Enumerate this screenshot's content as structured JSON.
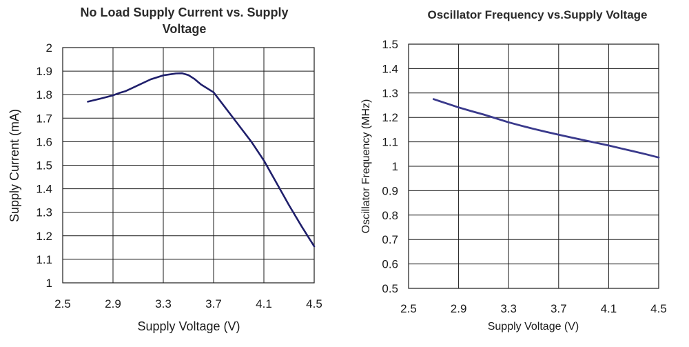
{
  "chart_data": [
    {
      "type": "line",
      "title": "No Load Supply Current vs. Supply Voltage",
      "xlabel": "Supply Voltage (V)",
      "ylabel": "Supply Current (mA)",
      "xlim": [
        2.5,
        4.5
      ],
      "ylim": [
        1,
        2
      ],
      "xticks": [
        2.5,
        2.9,
        3.3,
        3.7,
        4.1,
        4.5
      ],
      "xtick_labels": [
        "2.5",
        "2.9",
        "3.3",
        "3.7",
        "4.1",
        "4.5"
      ],
      "yticks": [
        1,
        1.1,
        1.2,
        1.3,
        1.4,
        1.5,
        1.6,
        1.7,
        1.8,
        1.9,
        2
      ],
      "ytick_labels": [
        "1",
        "1.1",
        "1.2",
        "1.3",
        "1.4",
        "1.5",
        "1.6",
        "1.7",
        "1.8",
        "1.9",
        "2"
      ],
      "grid": true,
      "color": "#1f1f6b",
      "series": [
        {
          "name": "Supply Current",
          "x": [
            2.7,
            2.8,
            2.9,
            2.95,
            3.0,
            3.1,
            3.2,
            3.3,
            3.4,
            3.45,
            3.5,
            3.55,
            3.6,
            3.7,
            3.8,
            3.9,
            4.0,
            4.1,
            4.2,
            4.3,
            4.4,
            4.5
          ],
          "y": [
            1.77,
            1.783,
            1.797,
            1.807,
            1.815,
            1.84,
            1.865,
            1.882,
            1.89,
            1.891,
            1.883,
            1.866,
            1.843,
            1.81,
            1.74,
            1.67,
            1.6,
            1.52,
            1.425,
            1.33,
            1.24,
            1.155
          ]
        }
      ]
    },
    {
      "type": "line",
      "title": "Oscillator Frequency vs.Supply Voltage",
      "xlabel": "Supply Voltage (V)",
      "ylabel": "Oscillator Frequency (MHz)",
      "xlim": [
        2.5,
        4.5
      ],
      "ylim": [
        0.5,
        1.5
      ],
      "xticks": [
        2.5,
        2.9,
        3.3,
        3.7,
        4.1,
        4.5
      ],
      "xtick_labels": [
        "2.5",
        "2.9",
        "3.3",
        "3.7",
        "4.1",
        "4.5"
      ],
      "yticks": [
        0.5,
        0.6,
        0.7,
        0.8,
        0.9,
        1,
        1.1,
        1.2,
        1.3,
        1.4,
        1.5
      ],
      "ytick_labels": [
        "0.5",
        "0.6",
        "0.7",
        "0.8",
        "0.9",
        "1",
        "1.1",
        "1.2",
        "1.3",
        "1.4",
        "1.5"
      ],
      "grid": true,
      "color": "#3a3a8c",
      "series": [
        {
          "name": "Oscillator Frequency",
          "x": [
            2.7,
            2.8,
            2.9,
            3.0,
            3.1,
            3.2,
            3.3,
            3.4,
            3.5,
            3.6,
            3.7,
            3.8,
            3.9,
            4.0,
            4.1,
            4.2,
            4.3,
            4.4,
            4.5
          ],
          "y": [
            1.275,
            1.258,
            1.241,
            1.226,
            1.212,
            1.196,
            1.18,
            1.166,
            1.153,
            1.141,
            1.129,
            1.118,
            1.107,
            1.096,
            1.085,
            1.073,
            1.061,
            1.049,
            1.036
          ]
        }
      ]
    }
  ]
}
